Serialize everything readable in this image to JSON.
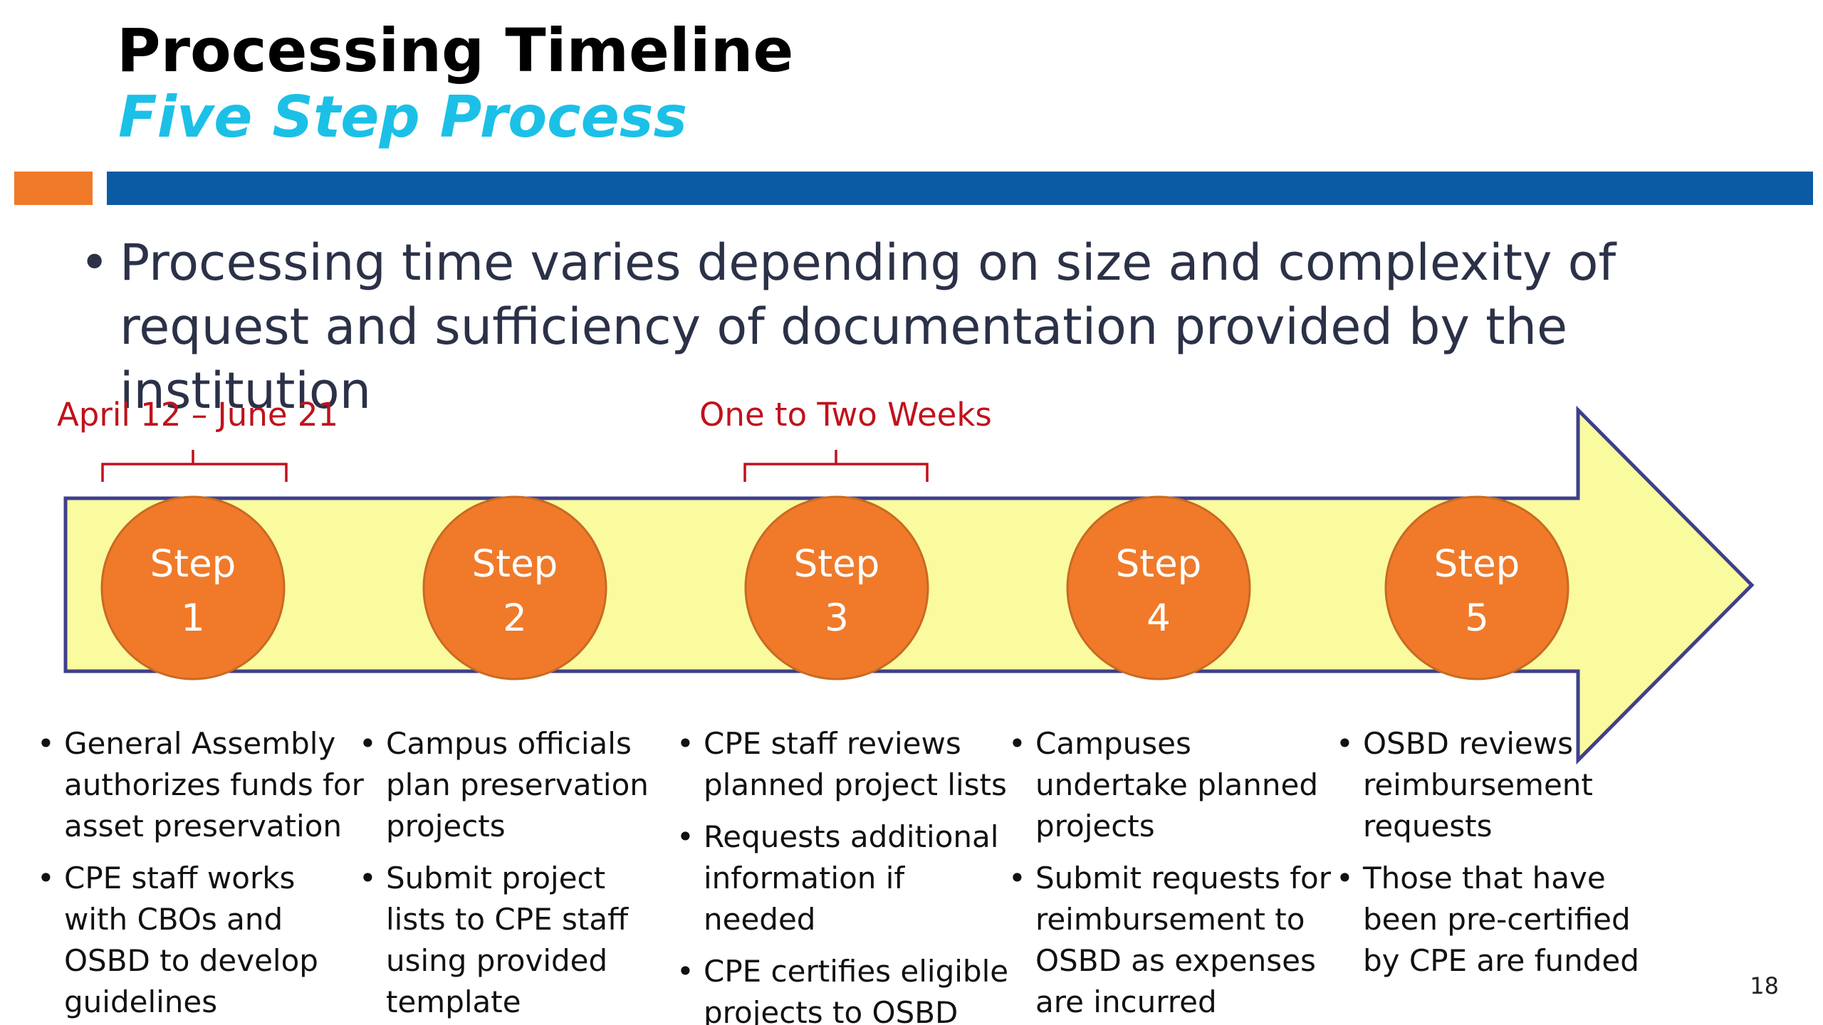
{
  "title": "Processing Timeline",
  "subtitle": "Five Step Process",
  "intro": "Processing time varies depending on size and complexity of request and sufficiency of documentation provided by the institution",
  "brackets": [
    {
      "label": "April 12 – June 21"
    },
    {
      "label": "One to Two Weeks"
    }
  ],
  "steps": [
    {
      "word": "Step",
      "number": "1",
      "bullets": [
        "General Assembly authorizes funds for asset preservation",
        "CPE staff works with CBOs and OSBD to develop guidelines"
      ]
    },
    {
      "word": "Step",
      "number": "2",
      "bullets": [
        "Campus officials plan preservation projects",
        "Submit project lists to CPE staff using provided template"
      ]
    },
    {
      "word": "Step",
      "number": "3",
      "bullets": [
        "CPE staff reviews planned project lists",
        "Requests additional information if needed",
        "CPE certifies eligible projects to OSBD"
      ]
    },
    {
      "word": "Step",
      "number": "4",
      "bullets": [
        "Campuses undertake planned projects",
        "Submit requests for reimbursement to OSBD as expenses are incurred"
      ]
    },
    {
      "word": "Step",
      "number": "5",
      "bullets": [
        "OSBD reviews reimbursement requests",
        "Those that have been pre-certified by CPE are funded"
      ]
    }
  ],
  "page_number": "18",
  "colors": {
    "accent_orange": "#f07a2a",
    "accent_blue": "#0a5ba3",
    "subtitle_cyan": "#1cc0e6",
    "arrow_fill": "#fafa9e",
    "arrow_border": "#3f3f8c",
    "bracket_red": "#c0121c"
  }
}
